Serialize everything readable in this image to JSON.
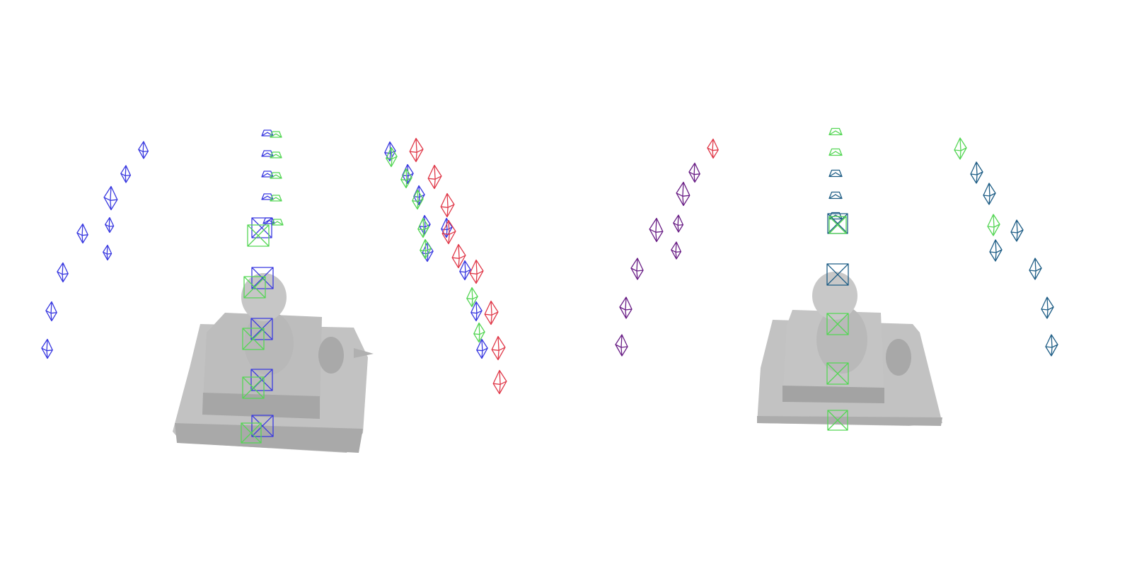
{
  "colors": {
    "background": "#ffffff",
    "mesh_light": "#c9c9c9",
    "mesh_mid": "#b4b4b4",
    "mesh_dark": "#9e9e9e",
    "camera_blue": "#3a3ae0",
    "camera_green": "#55d655",
    "camera_red": "#e03a4a",
    "camera_purple": "#6a1f86",
    "camera_teal": "#1f5e86"
  },
  "panels": [
    {
      "id": "left",
      "description_icon": "reconstructed-mesh-with-camera-poses",
      "camera_groups": [
        "blue",
        "green",
        "red"
      ]
    },
    {
      "id": "right",
      "description_icon": "reconstructed-mesh-with-camera-poses",
      "camera_groups": [
        "purple",
        "teal",
        "green"
      ]
    }
  ]
}
